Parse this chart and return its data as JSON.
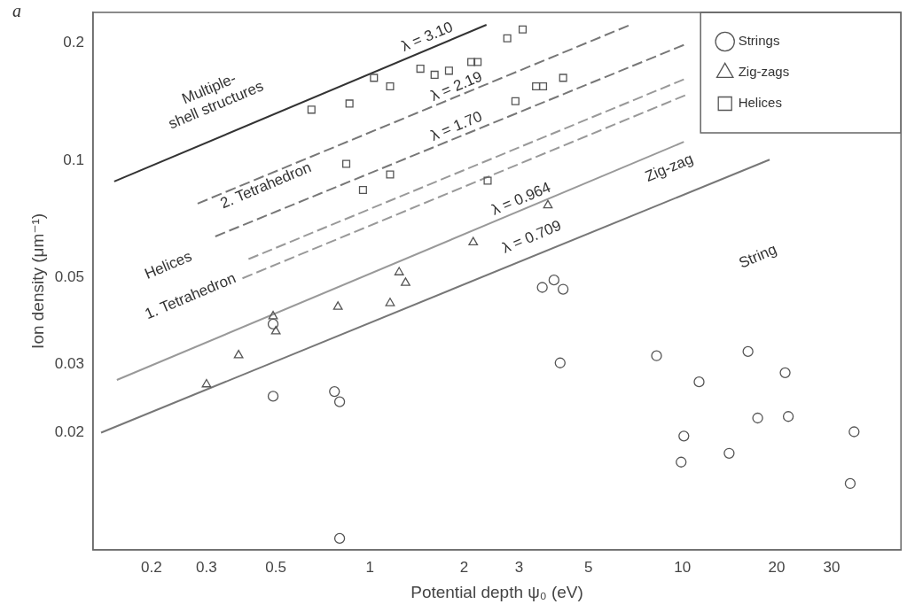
{
  "chart_data": {
    "type": "scatter",
    "xlabel": "Potential depth ψ₀ (eV)",
    "ylabel": "Ion density (μm⁻¹)",
    "log": "xy",
    "grid": false,
    "legend": "top right",
    "xlim": [
      0.13,
      50
    ],
    "xticks": [
      0.2,
      0.3,
      0.5,
      1,
      2,
      3,
      5,
      10,
      20,
      30
    ],
    "ylim": [
      0.01,
      0.24
    ],
    "yticks": [
      0.02,
      0.03,
      0.05,
      0.1,
      0.2
    ],
    "series": [
      {
        "name": "Strings",
        "marker": "circle",
        "color": "#555555",
        "x": [
          0.49,
          0.49,
          0.77,
          0.8,
          0.8,
          3.56,
          3.88,
          4.15,
          4.06,
          8.26,
          11.3,
          16.2,
          21.3,
          17.4,
          21.8,
          10.1,
          9.9,
          14.1,
          35.4,
          34.4
        ],
        "values": [
          0.0248,
          0.038,
          0.0255,
          0.024,
          0.0107,
          0.0472,
          0.0493,
          0.0467,
          0.0302,
          0.0315,
          0.027,
          0.0323,
          0.0285,
          0.0218,
          0.022,
          0.0196,
          0.0168,
          0.0177,
          0.0201,
          0.0148
        ]
      },
      {
        "name": "Zig-zags",
        "marker": "triangle",
        "color": "#555555",
        "x": [
          0.3,
          0.38,
          0.49,
          0.5,
          0.79,
          1.16,
          1.24,
          1.3,
          2.14,
          3.71
        ],
        "values": [
          0.0266,
          0.0316,
          0.0398,
          0.0364,
          0.0421,
          0.043,
          0.0516,
          0.0485,
          0.0616,
          0.0767
        ]
      },
      {
        "name": "Helices",
        "marker": "square",
        "color": "#555555",
        "x": [
          0.65,
          0.86,
          1.03,
          1.16,
          1.45,
          1.61,
          1.79,
          2.11,
          2.21,
          2.75,
          3.08,
          2.92,
          3.4,
          3.58,
          4.15,
          2.38,
          0.84,
          1.16,
          0.95
        ],
        "values": [
          0.135,
          0.14,
          0.163,
          0.155,
          0.172,
          0.166,
          0.17,
          0.179,
          0.179,
          0.206,
          0.217,
          0.142,
          0.155,
          0.155,
          0.163,
          0.0887,
          0.098,
          0.092,
          0.084
        ]
      },
      {
        "type": "line",
        "line_style": "solid",
        "color": "#333333",
        "x": [
          0.152,
          2.36
        ],
        "values": [
          0.0883,
          0.223
        ]
      },
      {
        "type": "line",
        "line_style": "dashed",
        "color": "#777777",
        "x": [
          0.281,
          6.72
        ],
        "values": [
          0.0775,
          0.222
        ]
      },
      {
        "type": "line",
        "line_style": "dashed",
        "color": "#777777",
        "x": [
          0.32,
          10.1
        ],
        "values": [
          0.0638,
          0.198
        ]
      },
      {
        "type": "line",
        "line_style": "dashed",
        "color": "#999999",
        "x": [
          0.409,
          10.1
        ],
        "values": [
          0.0558,
          0.1615
        ]
      },
      {
        "type": "line",
        "line_style": "dashed",
        "color": "#999999",
        "x": [
          0.391,
          10.2
        ],
        "values": [
          0.0498,
          0.147
        ]
      },
      {
        "type": "line",
        "line_style": "solid",
        "color": "#999999",
        "x": [
          0.155,
          10.1
        ],
        "values": [
          0.0273,
          0.1116
        ]
      },
      {
        "type": "line",
        "line_style": "solid",
        "color": "#777777",
        "x": [
          0.138,
          19.0
        ],
        "values": [
          0.02,
          0.1005
        ]
      }
    ],
    "annotations": [
      "a",
      "Multiple-\nshell structures",
      "λ = 3.10",
      "λ = 2.19",
      "λ = 1.70",
      "2. Tetrahedron",
      "Helices",
      "1. Tetrahedron",
      "λ = 0.964",
      "λ = 0.709",
      "Zig-zag",
      "String"
    ]
  }
}
